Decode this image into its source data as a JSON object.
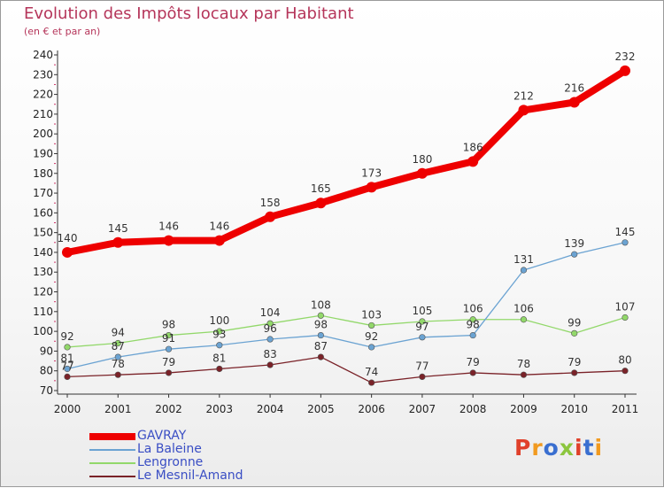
{
  "title": "Evolution des Impôts locaux par Habitant",
  "subtitle": "(en € et par an)",
  "logo": "Proxiti",
  "logo_colors": [
    "#e0402a",
    "#f19a20",
    "#3a6fd0",
    "#8cc63e",
    "#e0402a",
    "#3a6fd0",
    "#f19a20"
  ],
  "chart_data": {
    "type": "line",
    "title": "Evolution des Impôts locaux par Habitant",
    "subtitle": "(en € et par an)",
    "xlabel": "",
    "ylabel": "",
    "x": [
      "2000",
      "2001",
      "2002",
      "2003",
      "2004",
      "2005",
      "2006",
      "2007",
      "2008",
      "2009",
      "2010",
      "2011"
    ],
    "ylim": [
      70,
      240
    ],
    "yticks": [
      "70",
      "80",
      "90",
      "100",
      "110",
      "120",
      "130",
      "140",
      "150",
      "160",
      "170",
      "180",
      "190",
      "200",
      "210",
      "220",
      "230",
      "240"
    ],
    "grid": false,
    "legend_position": "bottom-left",
    "series": [
      {
        "name": "GAVRAY",
        "color": "#ee0000",
        "values": [
          140,
          145,
          146,
          146,
          158,
          165,
          173,
          180,
          186,
          212,
          216,
          232
        ],
        "labels": [
          "140",
          "145",
          "146",
          "146",
          "158",
          "165",
          "173",
          "180",
          "186",
          "212",
          "216",
          "232"
        ]
      },
      {
        "name": "La Baleine",
        "color": "#6ba3d2",
        "values": [
          81,
          87,
          91,
          93,
          96,
          98,
          92,
          97,
          98,
          131,
          139,
          145
        ],
        "labels": [
          "81",
          "87",
          "91",
          "93",
          "96",
          "98",
          "92",
          "97",
          "98",
          "131",
          "139",
          "145"
        ]
      },
      {
        "name": "Lengronne",
        "color": "#92d86a",
        "values": [
          92,
          94,
          98,
          100,
          104,
          108,
          103,
          105,
          106,
          106,
          99,
          107
        ],
        "labels": [
          "92",
          "94",
          "98",
          "100",
          "104",
          "108",
          "103",
          "105",
          "106",
          "106",
          "99",
          "107"
        ]
      },
      {
        "name": "Le Mesnil-Amand",
        "color": "#7a2228",
        "values": [
          77,
          78,
          79,
          81,
          83,
          87,
          74,
          77,
          79,
          78,
          79,
          80
        ],
        "labels": [
          "77",
          "78",
          "79",
          "81",
          "83",
          "87",
          "74",
          "77",
          "79",
          "78",
          "79",
          "80"
        ]
      }
    ]
  }
}
